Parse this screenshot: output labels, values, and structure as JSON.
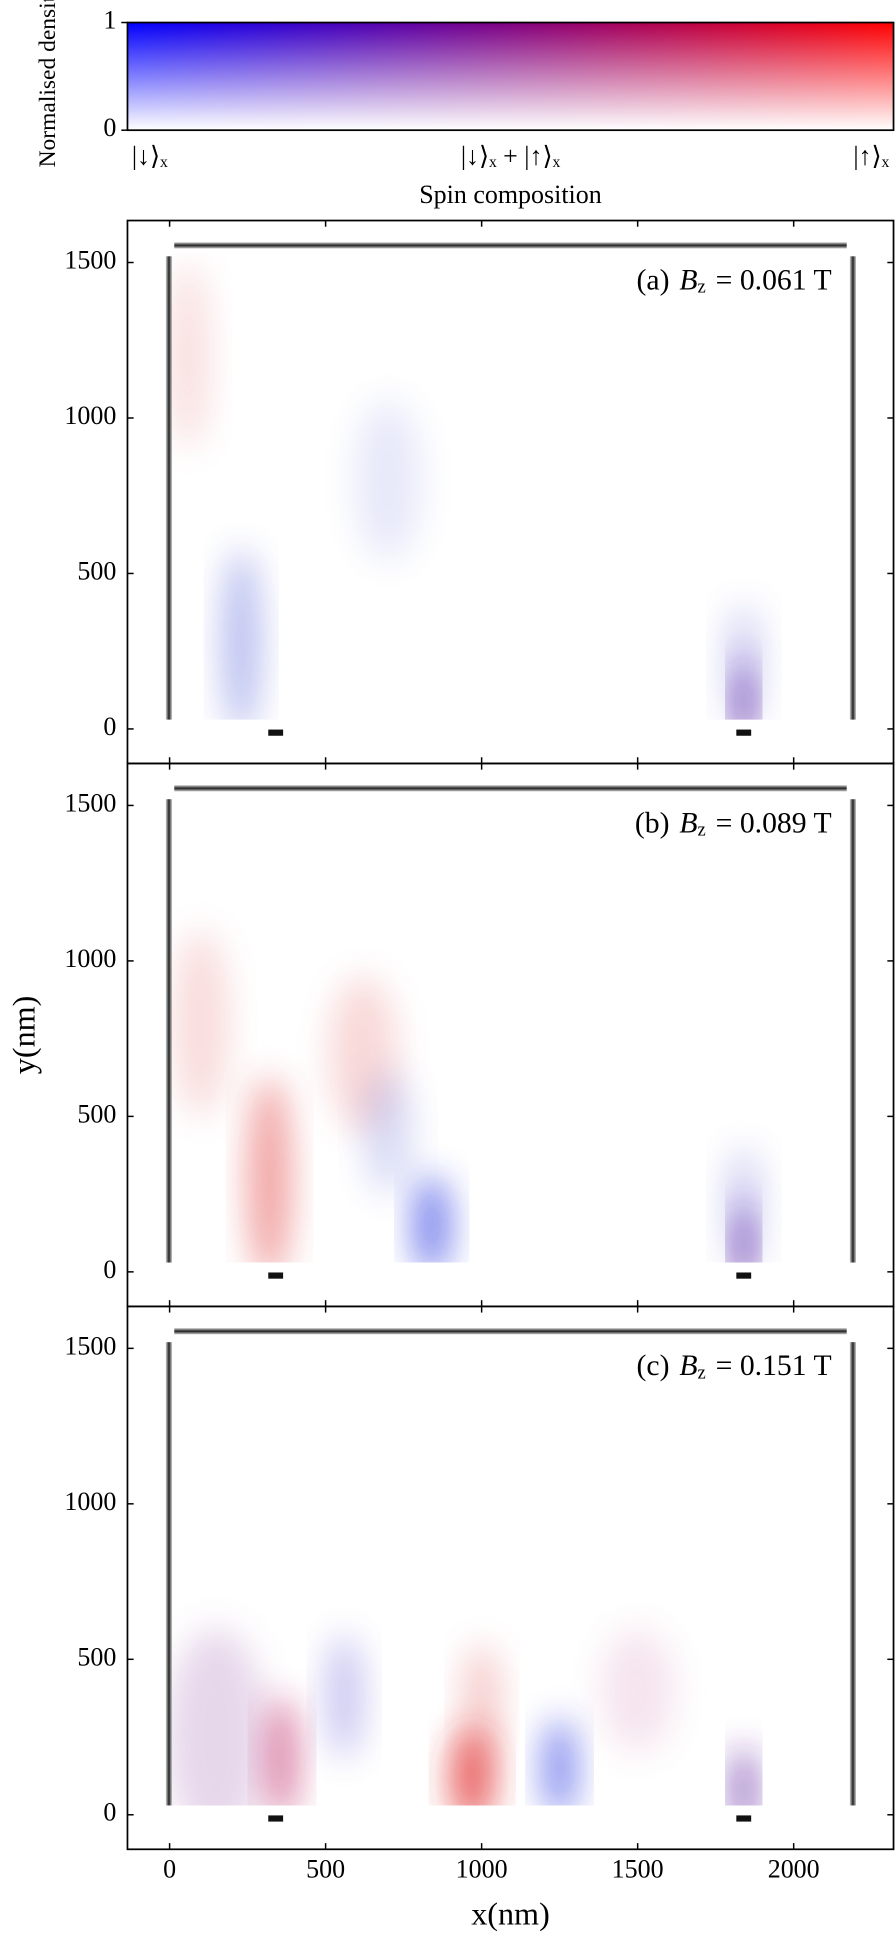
{
  "chart_data": [
    {
      "type": "colorbar",
      "ylabel": "Normalised density",
      "xlabel": "Spin composition",
      "ylim": [
        0,
        1
      ],
      "yticks": [
        0,
        1
      ],
      "categories": [
        "|↓⟩ₓ",
        "|↓⟩ₓ + |↑⟩ₓ",
        "|↑⟩ₓ"
      ],
      "colors": [
        "#0000ff",
        "#800080",
        "#ff0000"
      ]
    },
    {
      "type": "heatmap",
      "panel": "(a)",
      "symbol": "B",
      "subscript": "z",
      "field": "= 0.061 T",
      "xlim": [
        -135,
        2320
      ],
      "ylim": [
        -111,
        1635
      ],
      "xticks": [
        0,
        500,
        1000,
        1500,
        2000
      ],
      "yticks": [
        0,
        500,
        1000,
        1500
      ]
    },
    {
      "type": "heatmap",
      "panel": "(b)",
      "symbol": "B",
      "subscript": "z",
      "field": "= 0.089 T",
      "xlim": [
        -135,
        2320
      ],
      "ylim": [
        -111,
        1635
      ],
      "xticks": [
        0,
        500,
        1000,
        1500,
        2000
      ],
      "yticks": [
        0,
        500,
        1000,
        1500
      ],
      "ylabel": "y(nm)"
    },
    {
      "type": "heatmap",
      "panel": "(c)",
      "symbol": "B",
      "subscript": "z",
      "field": "= 0.151 T",
      "xlim": [
        -135,
        2320
      ],
      "ylim": [
        -111,
        1635
      ],
      "xticks": [
        0,
        500,
        1000,
        1500,
        2000
      ],
      "yticks": [
        0,
        500,
        1000,
        1500
      ],
      "xlabel": "x(nm)"
    }
  ]
}
